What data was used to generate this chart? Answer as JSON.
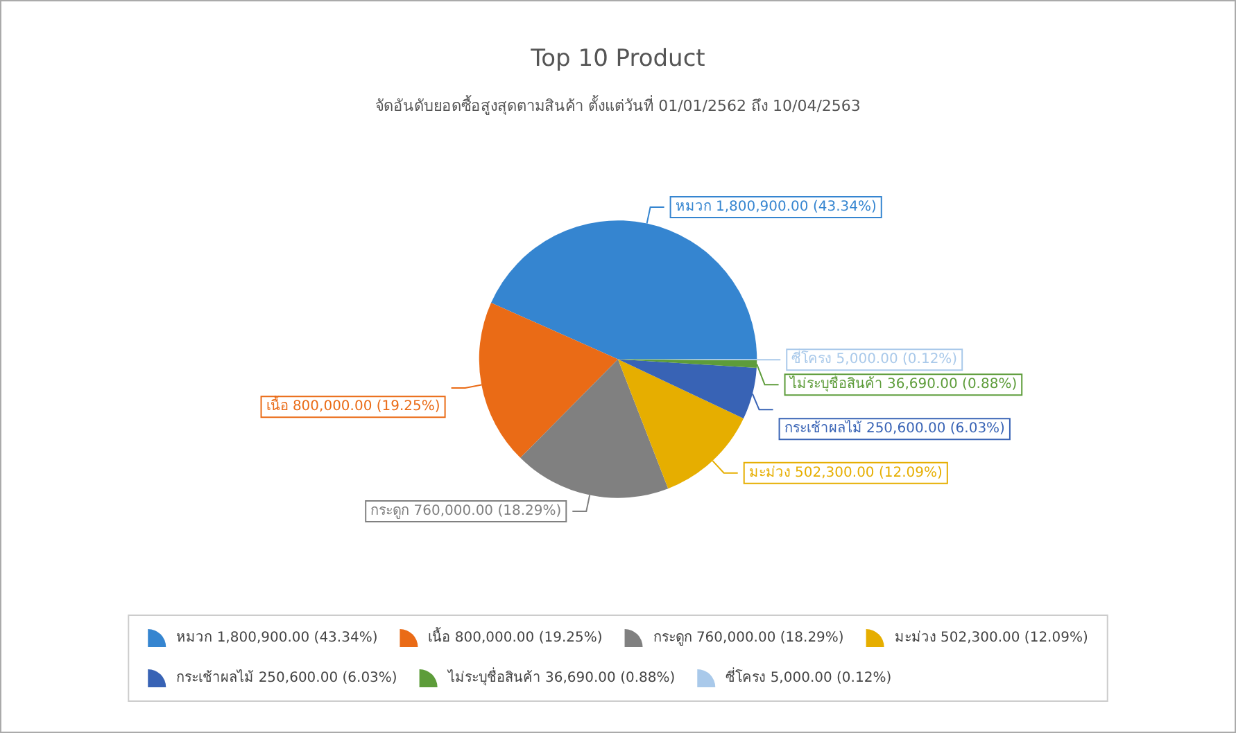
{
  "chart_data": {
    "type": "pie",
    "title": "Top 10 Product",
    "subtitle": "จัดอันดับยอดซื้อสูงสุดตามสินค้า ตั้งแต่วันที่ 01/01/2562 ถึง 10/04/2563",
    "categories": [
      "หมวก",
      "เนื้อ",
      "กระดูก",
      "มะม่วง",
      "กระเช้าผลไม้",
      "ไม่ระบุชื่อสินค้า",
      "ซี่โครง"
    ],
    "values": [
      1800900,
      800000,
      760000,
      502300,
      250600,
      36690,
      5000
    ],
    "value_labels": [
      "1,800,900.00 (43.34%)",
      "800,000.00 (19.25%)",
      "760,000.00 (18.29%)",
      "502,300.00 (12.09%)",
      "250,600.00 (6.03%)",
      "36,690.00 (0.88%)",
      "5,000.00 (0.12%)"
    ],
    "colors": [
      "#3585d0",
      "#ea6b16",
      "#808080",
      "#e6ae00",
      "#3863b5",
      "#5d9c3a",
      "#a9c9ea"
    ],
    "legend": "bottom"
  }
}
